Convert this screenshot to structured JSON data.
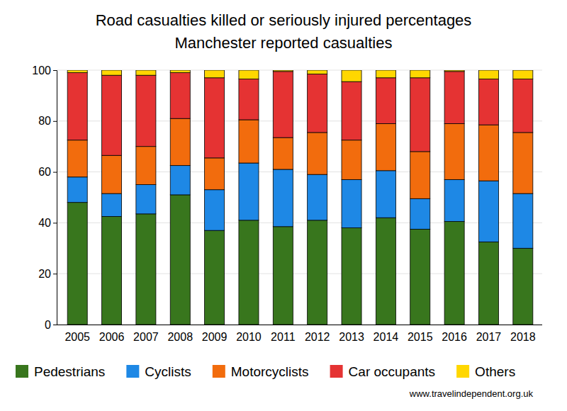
{
  "chart_data": {
    "type": "bar",
    "title": "Road casualties killed or seriously injured percentages",
    "subtitle": "Manchester reported casualties",
    "annotations": [
      "www.travelindependent.org.uk"
    ],
    "categories": [
      "2005",
      "2006",
      "2007",
      "2008",
      "2009",
      "2010",
      "2011",
      "2012",
      "2013",
      "2014",
      "2015",
      "2016",
      "2017",
      "2018"
    ],
    "series": [
      {
        "name": "Pedestrians",
        "color": "#38761d",
        "values": [
          48,
          42.5,
          43.5,
          51,
          37,
          41,
          38.5,
          41,
          38,
          42,
          37.5,
          40.5,
          32.5,
          30
        ]
      },
      {
        "name": "Cyclists",
        "color": "#1e88e5",
        "values": [
          10,
          9,
          11.5,
          11.5,
          16,
          22.5,
          22.5,
          18,
          19,
          18.5,
          12,
          16.5,
          24,
          21.5
        ]
      },
      {
        "name": "Motorcyclists",
        "color": "#f26c0d",
        "values": [
          14.5,
          15,
          15,
          18.5,
          12.5,
          17,
          12.5,
          16.5,
          15.5,
          18.5,
          18.5,
          22,
          22,
          24
        ]
      },
      {
        "name": "Car occupants",
        "color": "#e53333",
        "values": [
          26.5,
          31.5,
          28,
          18,
          31.5,
          16,
          26,
          23,
          23,
          18,
          29,
          20.5,
          18,
          21
        ]
      },
      {
        "name": "Others",
        "color": "#ffd700",
        "values": [
          1,
          2,
          2,
          1,
          3,
          3.5,
          0.5,
          1.5,
          4.5,
          3,
          3,
          0.5,
          3.5,
          3.5
        ]
      }
    ],
    "ylim": [
      0,
      100
    ],
    "yticks": [
      0,
      20,
      40,
      60,
      80,
      100
    ],
    "grid": true,
    "stacked": true,
    "legend": "bottom"
  }
}
